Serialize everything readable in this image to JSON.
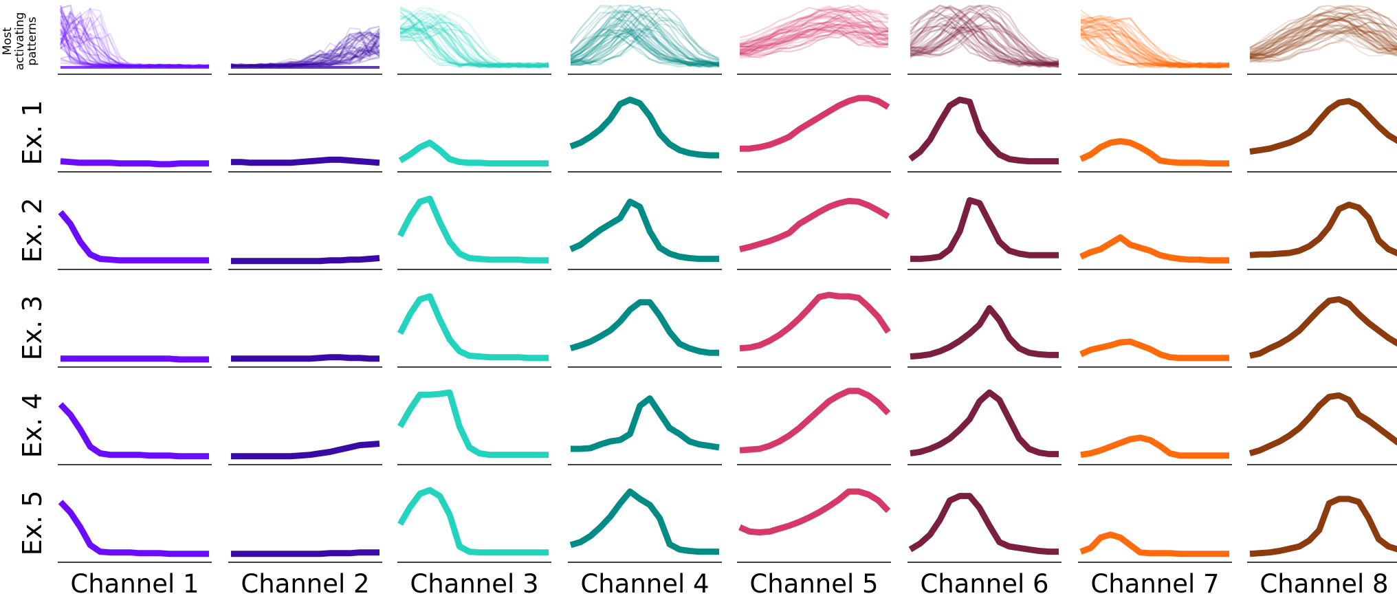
{
  "chart_data": {
    "type": "line",
    "header_label": [
      "Most",
      "activating",
      "patterns"
    ],
    "row_labels": [
      "Ex. 1",
      "Ex. 2",
      "Ex. 3",
      "Ex. 4",
      "Ex. 5"
    ],
    "channels": [
      {
        "label": "Channel 1",
        "color": "#6a0dff",
        "pattern_base": [
          0.95,
          0.85,
          0.5,
          0.2,
          0.08,
          0.05,
          0.04,
          0.03,
          0.03,
          0.03,
          0.03,
          0.03,
          0.03,
          0.03,
          0.03,
          0.03
        ],
        "pattern_kind": "early-drop",
        "examples": [
          [
            0.05,
            0.04,
            0.03,
            0.03,
            0.03,
            0.03,
            0.02,
            0.02,
            0.02,
            0.02,
            0.01,
            0.01,
            0.02,
            0.02,
            0.02,
            0.02
          ],
          [
            0.68,
            0.52,
            0.28,
            0.11,
            0.05,
            0.04,
            0.03,
            0.03,
            0.03,
            0.03,
            0.03,
            0.03,
            0.03,
            0.03,
            0.03,
            0.03
          ],
          [
            0.02,
            0.02,
            0.02,
            0.02,
            0.02,
            0.02,
            0.02,
            0.02,
            0.02,
            0.02,
            0.02,
            0.02,
            0.01,
            0.01,
            0.01,
            0.01
          ],
          [
            0.72,
            0.58,
            0.38,
            0.15,
            0.06,
            0.04,
            0.04,
            0.04,
            0.04,
            0.03,
            0.03,
            0.03,
            0.02,
            0.02,
            0.02,
            0.02
          ],
          [
            0.72,
            0.58,
            0.38,
            0.14,
            0.05,
            0.04,
            0.04,
            0.04,
            0.03,
            0.03,
            0.03,
            0.02,
            0.02,
            0.02,
            0.02,
            0.02
          ]
        ]
      },
      {
        "label": "Channel 2",
        "color": "#3a0aa6",
        "pattern_base": [
          0.04,
          0.04,
          0.04,
          0.04,
          0.04,
          0.04,
          0.05,
          0.06,
          0.08,
          0.12,
          0.18,
          0.25,
          0.32,
          0.4,
          0.5,
          0.6
        ],
        "pattern_kind": "late-rise",
        "examples": [
          [
            0.04,
            0.04,
            0.03,
            0.03,
            0.03,
            0.03,
            0.03,
            0.04,
            0.05,
            0.06,
            0.07,
            0.07,
            0.06,
            0.05,
            0.04,
            0.03
          ],
          [
            0.02,
            0.02,
            0.02,
            0.02,
            0.02,
            0.02,
            0.02,
            0.02,
            0.02,
            0.02,
            0.03,
            0.03,
            0.04,
            0.04,
            0.05,
            0.06
          ],
          [
            0.02,
            0.02,
            0.02,
            0.02,
            0.02,
            0.02,
            0.02,
            0.02,
            0.02,
            0.03,
            0.04,
            0.04,
            0.03,
            0.03,
            0.02,
            0.02
          ],
          [
            0.02,
            0.02,
            0.02,
            0.02,
            0.02,
            0.02,
            0.02,
            0.03,
            0.04,
            0.06,
            0.08,
            0.11,
            0.14,
            0.17,
            0.18,
            0.19
          ],
          [
            0.02,
            0.02,
            0.02,
            0.02,
            0.02,
            0.02,
            0.02,
            0.02,
            0.02,
            0.02,
            0.03,
            0.03,
            0.03,
            0.04,
            0.04,
            0.04
          ]
        ]
      },
      {
        "label": "Channel 3",
        "color": "#22d3bd",
        "pattern_base": [
          0.7,
          0.85,
          0.95,
          0.9,
          0.75,
          0.5,
          0.25,
          0.1,
          0.05,
          0.04,
          0.04,
          0.04,
          0.04,
          0.04,
          0.04,
          0.04
        ],
        "pattern_kind": "early-peak",
        "examples": [
          [
            0.06,
            0.14,
            0.24,
            0.3,
            0.2,
            0.08,
            0.04,
            0.03,
            0.03,
            0.02,
            0.02,
            0.02,
            0.02,
            0.02,
            0.02,
            0.02
          ],
          [
            0.36,
            0.62,
            0.82,
            0.86,
            0.55,
            0.28,
            0.12,
            0.06,
            0.05,
            0.04,
            0.04,
            0.04,
            0.04,
            0.03,
            0.03,
            0.03
          ],
          [
            0.36,
            0.62,
            0.82,
            0.86,
            0.55,
            0.28,
            0.12,
            0.06,
            0.05,
            0.04,
            0.04,
            0.04,
            0.04,
            0.03,
            0.03,
            0.03
          ],
          [
            0.42,
            0.65,
            0.85,
            0.85,
            0.86,
            0.88,
            0.42,
            0.14,
            0.06,
            0.04,
            0.04,
            0.04,
            0.04,
            0.04,
            0.04,
            0.04
          ],
          [
            0.42,
            0.65,
            0.83,
            0.88,
            0.8,
            0.55,
            0.12,
            0.05,
            0.04,
            0.04,
            0.04,
            0.04,
            0.04,
            0.04,
            0.04,
            0.04
          ]
        ]
      },
      {
        "label": "Channel 4",
        "color": "#008b85",
        "pattern_base": [
          0.1,
          0.15,
          0.25,
          0.4,
          0.6,
          0.8,
          0.95,
          0.95,
          0.8,
          0.6,
          0.4,
          0.25,
          0.15,
          0.1,
          0.08,
          0.06
        ],
        "pattern_kind": "mid-peak",
        "examples": [
          [
            0.25,
            0.3,
            0.38,
            0.48,
            0.62,
            0.82,
            0.88,
            0.83,
            0.66,
            0.42,
            0.28,
            0.2,
            0.16,
            0.14,
            0.13,
            0.13
          ],
          [
            0.18,
            0.24,
            0.34,
            0.44,
            0.52,
            0.6,
            0.82,
            0.75,
            0.42,
            0.2,
            0.12,
            0.08,
            0.06,
            0.05,
            0.05,
            0.05
          ],
          [
            0.16,
            0.2,
            0.25,
            0.32,
            0.4,
            0.52,
            0.68,
            0.78,
            0.78,
            0.6,
            0.38,
            0.22,
            0.16,
            0.12,
            0.1,
            0.1
          ],
          [
            0.12,
            0.12,
            0.13,
            0.18,
            0.22,
            0.24,
            0.32,
            0.7,
            0.8,
            0.6,
            0.4,
            0.32,
            0.22,
            0.18,
            0.16,
            0.14
          ],
          [
            0.14,
            0.18,
            0.26,
            0.38,
            0.52,
            0.7,
            0.86,
            0.76,
            0.68,
            0.5,
            0.15,
            0.08,
            0.06,
            0.05,
            0.05,
            0.05
          ]
        ]
      },
      {
        "label": "Channel 5",
        "color": "#d63868",
        "pattern_base": [
          0.3,
          0.36,
          0.42,
          0.48,
          0.55,
          0.62,
          0.7,
          0.78,
          0.86,
          0.92,
          0.96,
          0.96,
          0.92,
          0.85,
          0.75,
          0.6
        ],
        "pattern_kind": "late-peak",
        "examples": [
          [
            0.22,
            0.22,
            0.24,
            0.27,
            0.32,
            0.38,
            0.48,
            0.56,
            0.64,
            0.72,
            0.8,
            0.86,
            0.9,
            0.9,
            0.86,
            0.78
          ],
          [
            0.18,
            0.21,
            0.25,
            0.29,
            0.34,
            0.4,
            0.52,
            0.6,
            0.68,
            0.75,
            0.8,
            0.83,
            0.82,
            0.77,
            0.7,
            0.62
          ],
          [
            0.16,
            0.17,
            0.2,
            0.26,
            0.34,
            0.44,
            0.56,
            0.7,
            0.85,
            0.88,
            0.86,
            0.86,
            0.84,
            0.72,
            0.58,
            0.38
          ],
          [
            0.1,
            0.11,
            0.12,
            0.16,
            0.22,
            0.3,
            0.4,
            0.52,
            0.64,
            0.76,
            0.84,
            0.9,
            0.9,
            0.84,
            0.74,
            0.6
          ],
          [
            0.38,
            0.32,
            0.31,
            0.32,
            0.36,
            0.4,
            0.45,
            0.51,
            0.58,
            0.66,
            0.75,
            0.86,
            0.86,
            0.82,
            0.74,
            0.6
          ]
        ]
      },
      {
        "label": "Channel 6",
        "color": "#7a1f3f",
        "pattern_base": [
          0.3,
          0.4,
          0.55,
          0.75,
          0.9,
          0.98,
          0.95,
          0.8,
          0.6,
          0.4,
          0.25,
          0.15,
          0.1,
          0.08,
          0.06,
          0.05
        ],
        "pattern_kind": "mid-peak",
        "examples": [
          [
            0.08,
            0.18,
            0.34,
            0.58,
            0.8,
            0.88,
            0.85,
            0.46,
            0.28,
            0.14,
            0.08,
            0.06,
            0.05,
            0.05,
            0.05,
            0.05
          ],
          [
            0.05,
            0.05,
            0.06,
            0.08,
            0.18,
            0.42,
            0.84,
            0.8,
            0.54,
            0.28,
            0.16,
            0.12,
            0.1,
            0.1,
            0.1,
            0.1
          ],
          [
            0.05,
            0.06,
            0.08,
            0.12,
            0.18,
            0.26,
            0.36,
            0.48,
            0.7,
            0.54,
            0.3,
            0.16,
            0.1,
            0.08,
            0.07,
            0.07
          ],
          [
            0.06,
            0.08,
            0.12,
            0.18,
            0.26,
            0.38,
            0.52,
            0.76,
            0.88,
            0.78,
            0.52,
            0.26,
            0.12,
            0.07,
            0.05,
            0.05
          ],
          [
            0.08,
            0.16,
            0.28,
            0.48,
            0.74,
            0.8,
            0.8,
            0.64,
            0.4,
            0.18,
            0.12,
            0.1,
            0.08,
            0.06,
            0.05,
            0.05
          ]
        ]
      },
      {
        "label": "Channel 7",
        "color": "#ff6a0d",
        "pattern_base": [
          0.8,
          0.85,
          0.8,
          0.65,
          0.45,
          0.3,
          0.18,
          0.1,
          0.06,
          0.04,
          0.04,
          0.04,
          0.04,
          0.04,
          0.04,
          0.04
        ],
        "pattern_kind": "early-peak",
        "examples": [
          [
            0.08,
            0.14,
            0.24,
            0.3,
            0.32,
            0.3,
            0.24,
            0.16,
            0.06,
            0.04,
            0.03,
            0.03,
            0.03,
            0.02,
            0.02,
            0.02
          ],
          [
            0.08,
            0.14,
            0.18,
            0.26,
            0.34,
            0.24,
            0.2,
            0.16,
            0.1,
            0.07,
            0.05,
            0.04,
            0.04,
            0.03,
            0.03,
            0.03
          ],
          [
            0.08,
            0.14,
            0.17,
            0.2,
            0.24,
            0.25,
            0.2,
            0.15,
            0.08,
            0.04,
            0.03,
            0.03,
            0.03,
            0.03,
            0.03,
            0.03
          ],
          [
            0.04,
            0.06,
            0.1,
            0.15,
            0.2,
            0.25,
            0.27,
            0.24,
            0.16,
            0.06,
            0.03,
            0.03,
            0.03,
            0.03,
            0.03,
            0.03
          ],
          [
            0.05,
            0.1,
            0.24,
            0.28,
            0.24,
            0.14,
            0.04,
            0.03,
            0.03,
            0.03,
            0.02,
            0.02,
            0.02,
            0.02,
            0.02,
            0.02
          ]
        ]
      },
      {
        "label": "Channel 8",
        "color": "#8b3b0e",
        "pattern_base": [
          0.2,
          0.26,
          0.34,
          0.44,
          0.55,
          0.66,
          0.77,
          0.86,
          0.93,
          0.97,
          0.97,
          0.92,
          0.82,
          0.66,
          0.5,
          0.35
        ],
        "pattern_kind": "late-peak",
        "examples": [
          [
            0.18,
            0.2,
            0.22,
            0.26,
            0.3,
            0.36,
            0.44,
            0.6,
            0.75,
            0.84,
            0.86,
            0.8,
            0.66,
            0.52,
            0.4,
            0.32
          ],
          [
            0.1,
            0.11,
            0.11,
            0.12,
            0.13,
            0.16,
            0.22,
            0.32,
            0.48,
            0.72,
            0.78,
            0.74,
            0.6,
            0.3,
            0.18,
            0.12
          ],
          [
            0.06,
            0.09,
            0.16,
            0.22,
            0.3,
            0.4,
            0.54,
            0.68,
            0.8,
            0.82,
            0.76,
            0.62,
            0.5,
            0.4,
            0.3,
            0.22
          ],
          [
            0.06,
            0.1,
            0.16,
            0.22,
            0.3,
            0.4,
            0.54,
            0.7,
            0.82,
            0.84,
            0.78,
            0.58,
            0.5,
            0.4,
            0.3,
            0.2
          ],
          [
            0.02,
            0.03,
            0.04,
            0.06,
            0.09,
            0.12,
            0.2,
            0.34,
            0.7,
            0.76,
            0.76,
            0.72,
            0.5,
            0.22,
            0.12,
            0.08
          ]
        ]
      }
    ]
  }
}
